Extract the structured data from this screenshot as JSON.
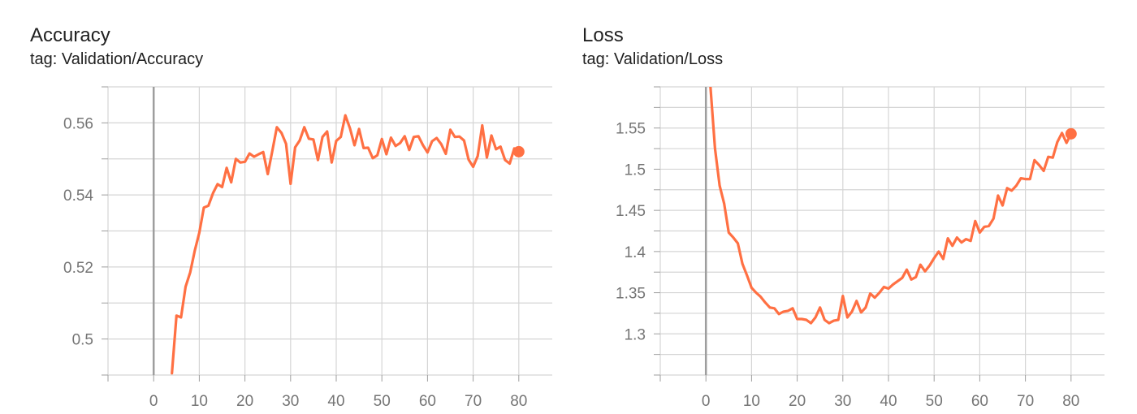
{
  "chart_data": [
    {
      "type": "line",
      "title": "Accuracy",
      "subtitle": "tag: Validation/Accuracy",
      "xlabel": "",
      "ylabel": "",
      "xlim": [
        -10,
        90
      ],
      "ylim": [
        0.49,
        0.57
      ],
      "xticks": [
        0,
        10,
        20,
        30,
        40,
        50,
        60,
        70,
        80
      ],
      "yticks": [
        0.5,
        0.52,
        0.54,
        0.56
      ],
      "ytick_labels": [
        "0.5",
        "0.52",
        "0.54",
        "0.56"
      ],
      "grid": true,
      "color": "#ff7043",
      "series": [
        {
          "x": [
            4,
            5,
            6,
            7,
            8,
            9,
            10,
            11,
            12,
            13,
            14,
            15,
            16,
            17,
            18,
            19,
            20,
            21,
            22,
            23,
            24,
            25,
            26,
            27,
            28,
            29,
            30,
            31,
            32,
            33,
            34,
            35,
            36,
            37,
            38,
            39,
            40,
            41,
            42,
            43,
            44,
            45,
            46,
            47,
            48,
            49,
            50,
            51,
            52,
            53,
            54,
            55,
            56,
            57,
            58,
            59,
            60,
            61,
            62,
            63,
            64,
            65,
            66,
            67,
            68,
            69,
            70,
            71,
            72,
            73,
            74,
            75,
            76,
            77,
            78,
            79,
            80
          ],
          "y": [
            0.4905,
            0.5065,
            0.506,
            0.5145,
            0.5185,
            0.5245,
            0.5295,
            0.5365,
            0.537,
            0.5405,
            0.543,
            0.5422,
            0.5475,
            0.5435,
            0.55,
            0.549,
            0.5492,
            0.5515,
            0.5506,
            0.5513,
            0.5519,
            0.5458,
            0.5522,
            0.5588,
            0.5572,
            0.5542,
            0.5431,
            0.5532,
            0.5551,
            0.5588,
            0.5556,
            0.5554,
            0.5497,
            0.5561,
            0.5576,
            0.549,
            0.555,
            0.5561,
            0.5621,
            0.5585,
            0.5538,
            0.5583,
            0.553,
            0.5531,
            0.5502,
            0.551,
            0.5555,
            0.5513,
            0.5559,
            0.5536,
            0.5544,
            0.5563,
            0.5525,
            0.5561,
            0.5563,
            0.5538,
            0.5518,
            0.5549,
            0.5558,
            0.5541,
            0.5514,
            0.5581,
            0.5561,
            0.5562,
            0.5551,
            0.5498,
            0.5478,
            0.5508,
            0.5593,
            0.5504,
            0.5565,
            0.5527,
            0.5534,
            0.5497,
            0.5487,
            0.5529,
            0.552
          ]
        }
      ]
    },
    {
      "type": "line",
      "title": "Loss",
      "subtitle": "tag: Validation/Loss",
      "xlabel": "",
      "ylabel": "",
      "xlim": [
        -10,
        90
      ],
      "ylim": [
        1.25,
        1.6
      ],
      "xticks": [
        0,
        10,
        20,
        30,
        40,
        50,
        60,
        70,
        80
      ],
      "yticks": [
        1.3,
        1.35,
        1.4,
        1.45,
        1.5,
        1.55
      ],
      "ytick_labels": [
        "1.3",
        "1.35",
        "1.4",
        "1.45",
        "1.5",
        "1.55"
      ],
      "grid": true,
      "color": "#ff7043",
      "series": [
        {
          "x": [
            1,
            2,
            3,
            4,
            5,
            6,
            7,
            8,
            9,
            10,
            11,
            12,
            13,
            14,
            15,
            16,
            17,
            18,
            19,
            20,
            21,
            22,
            23,
            24,
            25,
            26,
            27,
            28,
            29,
            30,
            31,
            32,
            33,
            34,
            35,
            36,
            37,
            38,
            39,
            40,
            41,
            42,
            43,
            44,
            45,
            46,
            47,
            48,
            49,
            50,
            51,
            52,
            53,
            54,
            55,
            56,
            57,
            58,
            59,
            60,
            61,
            62,
            63,
            64,
            65,
            66,
            67,
            68,
            69,
            70,
            71,
            72,
            73,
            74,
            75,
            76,
            77,
            78,
            79,
            80
          ],
          "y": [
            1.6,
            1.525,
            1.48,
            1.458,
            1.423,
            1.417,
            1.41,
            1.385,
            1.371,
            1.356,
            1.35,
            1.345,
            1.338,
            1.332,
            1.331,
            1.324,
            1.327,
            1.328,
            1.331,
            1.318,
            1.318,
            1.317,
            1.313,
            1.32,
            1.332,
            1.317,
            1.313,
            1.316,
            1.317,
            1.346,
            1.32,
            1.327,
            1.34,
            1.326,
            1.332,
            1.349,
            1.344,
            1.35,
            1.357,
            1.355,
            1.36,
            1.364,
            1.368,
            1.378,
            1.366,
            1.369,
            1.384,
            1.376,
            1.383,
            1.392,
            1.4,
            1.391,
            1.416,
            1.407,
            1.417,
            1.411,
            1.415,
            1.413,
            1.437,
            1.423,
            1.43,
            1.431,
            1.44,
            1.468,
            1.456,
            1.477,
            1.474,
            1.48,
            1.489,
            1.488,
            1.488,
            1.511,
            1.505,
            1.498,
            1.515,
            1.514,
            1.533,
            1.544,
            1.532,
            1.543
          ]
        }
      ]
    }
  ]
}
